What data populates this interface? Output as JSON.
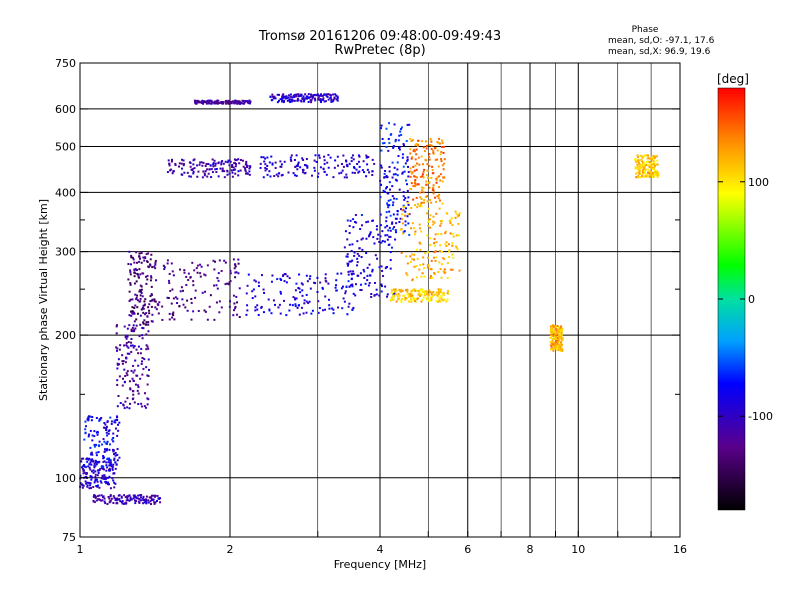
{
  "chart_data": {
    "type": "scatter",
    "title": "Tromsø 20161206 09:48:00-09:49:43",
    "subtitle": "RwPretec (8p)",
    "xlabel": "Frequency [MHz]",
    "ylabel": "Stationary phase Virtual Height [km]",
    "x_scale": "log",
    "y_scale": "log",
    "xlim": [
      1,
      16
    ],
    "ylim": [
      75,
      750
    ],
    "x_ticks": [
      1,
      2,
      4,
      6,
      8,
      10,
      16
    ],
    "x_minor_ticks": [
      3,
      5,
      7,
      9,
      12,
      14
    ],
    "y_ticks": [
      75,
      100,
      200,
      300,
      400,
      500,
      600,
      750
    ],
    "y_minor_ticks": [
      150,
      250,
      350
    ],
    "grid": true,
    "phase_header": "Phase",
    "phase_stats": [
      "mean, sd,O: -97.1, 17.6",
      "mean, sd,X:  96.9, 19.6"
    ],
    "colorbar": {
      "label": "[deg]",
      "ticks": [
        -100,
        0,
        100
      ],
      "range": [
        -180,
        180
      ]
    },
    "o_trace_clusters": [
      {
        "x": [
          1.0,
          1.18
        ],
        "y": [
          95,
          110
        ],
        "phase": -95
      },
      {
        "x": [
          1.05,
          1.45
        ],
        "y": [
          88,
          92
        ],
        "phase": -110
      },
      {
        "x": [
          1.02,
          1.2
        ],
        "y": [
          105,
          135
        ],
        "phase": -80
      },
      {
        "x": [
          1.18,
          1.38
        ],
        "y": [
          140,
          210
        ],
        "phase": -115
      },
      {
        "x": [
          1.25,
          1.4
        ],
        "y": [
          210,
          300
        ],
        "phase": -130
      },
      {
        "x": [
          1.4,
          2.1
        ],
        "y": [
          215,
          290
        ],
        "phase": -125
      },
      {
        "x": [
          2.15,
          3.6
        ],
        "y": [
          220,
          270
        ],
        "phase": -90
      },
      {
        "x": [
          3.4,
          4.3
        ],
        "y": [
          240,
          360
        ],
        "phase": -85
      },
      {
        "x": [
          4.0,
          4.6
        ],
        "y": [
          320,
          560
        ],
        "phase": -75
      },
      {
        "x": [
          1.5,
          2.2
        ],
        "y": [
          430,
          470
        ],
        "phase": -110
      },
      {
        "x": [
          2.3,
          3.9
        ],
        "y": [
          430,
          480
        ],
        "phase": -95
      },
      {
        "x": [
          1.7,
          2.2
        ],
        "y": [
          615,
          625
        ],
        "phase": -115
      },
      {
        "x": [
          2.4,
          3.3
        ],
        "y": [
          620,
          645
        ],
        "phase": -95
      }
    ],
    "x_trace_clusters": [
      {
        "x": [
          4.2,
          5.5
        ],
        "y": [
          235,
          250
        ],
        "phase": 110
      },
      {
        "x": [
          4.4,
          5.8
        ],
        "y": [
          260,
          380
        ],
        "phase": 120
      },
      {
        "x": [
          4.6,
          5.4
        ],
        "y": [
          380,
          520
        ],
        "phase": 140
      },
      {
        "x": [
          8.8,
          9.3
        ],
        "y": [
          185,
          210
        ],
        "phase": 120
      },
      {
        "x": [
          13.0,
          14.5
        ],
        "y": [
          430,
          480
        ],
        "phase": 110
      }
    ]
  }
}
